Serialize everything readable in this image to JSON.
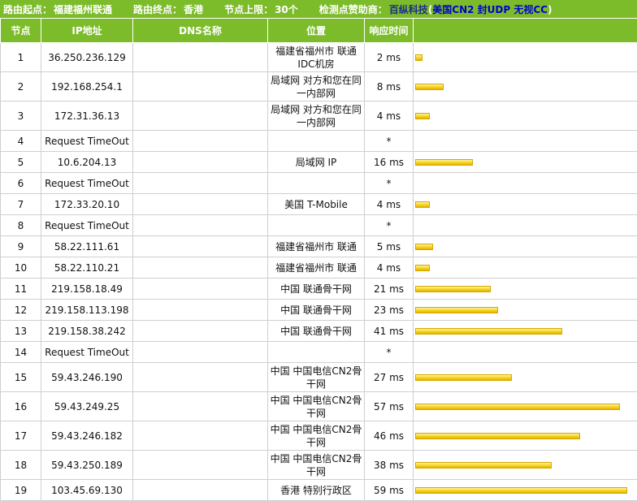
{
  "header": {
    "start_label": "路由起点：",
    "start_value": "福建福州联通",
    "end_label": "路由终点：",
    "end_value": "香港",
    "limit_label": "节点上限：",
    "limit_value": "30个",
    "sponsor_label": "检测点赞助商：",
    "sponsor_name": "百纵科技",
    "paren_open": "(",
    "sponsor_link": "美国CN2 封UDP 无视CC",
    "paren_close": ")"
  },
  "columns": [
    "节点",
    "IP地址",
    "DNS名称",
    "位置",
    "响应时间",
    ""
  ],
  "rows": [
    {
      "hop": "1",
      "ip": "36.250.236.129",
      "dns": "",
      "location": "福建省福州市 联通IDC机房",
      "time": "2 ms",
      "ms": 2
    },
    {
      "hop": "2",
      "ip": "192.168.254.1",
      "dns": "",
      "location": "局域网 对方和您在同一内部网",
      "time": "8 ms",
      "ms": 8
    },
    {
      "hop": "3",
      "ip": "172.31.36.13",
      "dns": "",
      "location": "局域网 对方和您在同一内部网",
      "time": "4 ms",
      "ms": 4
    },
    {
      "hop": "4",
      "ip": "Request TimeOut",
      "dns": "",
      "location": "",
      "time": "*",
      "ms": 0
    },
    {
      "hop": "5",
      "ip": "10.6.204.13",
      "dns": "",
      "location": "局域网 IP",
      "time": "16 ms",
      "ms": 16
    },
    {
      "hop": "6",
      "ip": "Request TimeOut",
      "dns": "",
      "location": "",
      "time": "*",
      "ms": 0
    },
    {
      "hop": "7",
      "ip": "172.33.20.10",
      "dns": "",
      "location": "美国 T-Mobile",
      "time": "4 ms",
      "ms": 4
    },
    {
      "hop": "8",
      "ip": "Request TimeOut",
      "dns": "",
      "location": "",
      "time": "*",
      "ms": 0
    },
    {
      "hop": "9",
      "ip": "58.22.111.61",
      "dns": "",
      "location": "福建省福州市 联通",
      "time": "5 ms",
      "ms": 5
    },
    {
      "hop": "10",
      "ip": "58.22.110.21",
      "dns": "",
      "location": "福建省福州市 联通",
      "time": "4 ms",
      "ms": 4
    },
    {
      "hop": "11",
      "ip": "219.158.18.49",
      "dns": "",
      "location": "中国 联通骨干网",
      "time": "21 ms",
      "ms": 21
    },
    {
      "hop": "12",
      "ip": "219.158.113.198",
      "dns": "",
      "location": "中国 联通骨干网",
      "time": "23 ms",
      "ms": 23
    },
    {
      "hop": "13",
      "ip": "219.158.38.242",
      "dns": "",
      "location": "中国 联通骨干网",
      "time": "41 ms",
      "ms": 41
    },
    {
      "hop": "14",
      "ip": "Request TimeOut",
      "dns": "",
      "location": "",
      "time": "*",
      "ms": 0
    },
    {
      "hop": "15",
      "ip": "59.43.246.190",
      "dns": "",
      "location": "中国 中国电信CN2骨干网",
      "time": "27 ms",
      "ms": 27
    },
    {
      "hop": "16",
      "ip": "59.43.249.25",
      "dns": "",
      "location": "中国 中国电信CN2骨干网",
      "time": "57 ms",
      "ms": 57
    },
    {
      "hop": "17",
      "ip": "59.43.246.182",
      "dns": "",
      "location": "中国 中国电信CN2骨干网",
      "time": "46 ms",
      "ms": 46
    },
    {
      "hop": "18",
      "ip": "59.43.250.189",
      "dns": "",
      "location": "中国 中国电信CN2骨干网",
      "time": "38 ms",
      "ms": 38
    },
    {
      "hop": "19",
      "ip": "103.45.69.130",
      "dns": "",
      "location": "香港 特别行政区",
      "time": "59 ms",
      "ms": 59
    }
  ],
  "colors": {
    "accent": "#7cbc2a",
    "bar": "#f7d21e"
  }
}
